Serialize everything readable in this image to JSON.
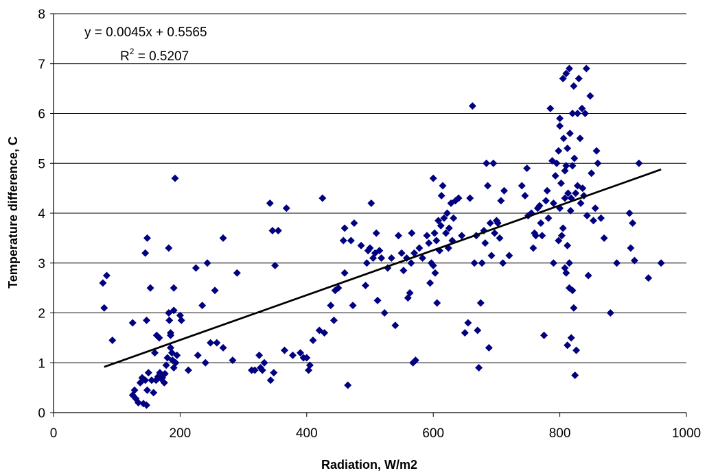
{
  "chart_data": {
    "type": "scatter",
    "xlabel": "Radiation, W/m2",
    "ylabel": "Temperature difference, C",
    "xlim": [
      0,
      1000
    ],
    "ylim": [
      0,
      8
    ],
    "xticks": [
      "0",
      "200",
      "400",
      "600",
      "800",
      "1000"
    ],
    "yticks": [
      "0",
      "1",
      "2",
      "3",
      "4",
      "5",
      "6",
      "7",
      "8"
    ],
    "grid": "horizontal",
    "legend": "none",
    "marker": "diamond",
    "marker_color": "#000080",
    "trendline": {
      "slope": 0.0045,
      "intercept": 0.5565,
      "x_range": [
        80,
        960
      ],
      "color": "#000000",
      "equation": "y = 0.0045x + 0.5565",
      "r2_prefix": "R",
      "r2_sup": "2",
      "r2_value": " = 0.5207"
    },
    "points": [
      [
        78,
        2.6
      ],
      [
        80,
        2.1
      ],
      [
        84,
        2.75
      ],
      [
        93,
        1.45
      ],
      [
        125,
        1.8
      ],
      [
        125,
        0.35
      ],
      [
        128,
        0.45
      ],
      [
        130,
        0.28
      ],
      [
        134,
        0.2
      ],
      [
        137,
        0.6
      ],
      [
        140,
        0.7
      ],
      [
        142,
        0.18
      ],
      [
        145,
        0.65
      ],
      [
        147,
        0.15
      ],
      [
        145,
        3.2
      ],
      [
        148,
        3.5
      ],
      [
        147,
        1.85
      ],
      [
        148,
        0.45
      ],
      [
        150,
        0.8
      ],
      [
        153,
        2.5
      ],
      [
        155,
        0.65
      ],
      [
        158,
        0.4
      ],
      [
        160,
        1.2
      ],
      [
        162,
        0.65
      ],
      [
        163,
        1.55
      ],
      [
        165,
        0.72
      ],
      [
        167,
        1.5
      ],
      [
        168,
        0.8
      ],
      [
        170,
        0.68
      ],
      [
        172,
        0.7
      ],
      [
        175,
        0.6
      ],
      [
        176,
        0.78
      ],
      [
        178,
        0.95
      ],
      [
        180,
        1.1
      ],
      [
        182,
        3.3
      ],
      [
        182,
        2.0
      ],
      [
        183,
        1.85
      ],
      [
        185,
        1.6
      ],
      [
        185,
        1.3
      ],
      [
        185,
        1.55
      ],
      [
        187,
        1.2
      ],
      [
        188,
        1.05
      ],
      [
        190,
        0.9
      ],
      [
        190,
        2.05
      ],
      [
        190,
        2.5
      ],
      [
        192,
        4.7
      ],
      [
        193,
        1.0
      ],
      [
        195,
        1.15
      ],
      [
        200,
        1.95
      ],
      [
        202,
        1.85
      ],
      [
        213,
        0.85
      ],
      [
        225,
        2.9
      ],
      [
        228,
        1.15
      ],
      [
        235,
        2.15
      ],
      [
        240,
        1.0
      ],
      [
        243,
        3.0
      ],
      [
        248,
        1.4
      ],
      [
        255,
        2.45
      ],
      [
        258,
        1.4
      ],
      [
        268,
        3.5
      ],
      [
        268,
        1.3
      ],
      [
        283,
        1.05
      ],
      [
        290,
        2.8
      ],
      [
        313,
        0.85
      ],
      [
        318,
        0.85
      ],
      [
        325,
        1.15
      ],
      [
        327,
        0.9
      ],
      [
        330,
        0.85
      ],
      [
        333,
        1.0
      ],
      [
        342,
        4.2
      ],
      [
        343,
        0.65
      ],
      [
        346,
        3.65
      ],
      [
        348,
        0.8
      ],
      [
        350,
        2.95
      ],
      [
        355,
        3.65
      ],
      [
        365,
        1.25
      ],
      [
        368,
        4.1
      ],
      [
        378,
        1.15
      ],
      [
        390,
        1.2
      ],
      [
        395,
        1.1
      ],
      [
        400,
        1.1
      ],
      [
        403,
        0.85
      ],
      [
        405,
        0.95
      ],
      [
        410,
        1.45
      ],
      [
        420,
        1.65
      ],
      [
        425,
        4.3
      ],
      [
        428,
        1.6
      ],
      [
        438,
        2.15
      ],
      [
        443,
        1.85
      ],
      [
        445,
        2.45
      ],
      [
        450,
        2.5
      ],
      [
        458,
        3.45
      ],
      [
        460,
        2.8
      ],
      [
        460,
        3.7
      ],
      [
        465,
        0.55
      ],
      [
        470,
        3.45
      ],
      [
        473,
        2.15
      ],
      [
        475,
        3.8
      ],
      [
        486,
        3.35
      ],
      [
        493,
        2.55
      ],
      [
        495,
        3.0
      ],
      [
        497,
        3.25
      ],
      [
        500,
        3.3
      ],
      [
        502,
        4.2
      ],
      [
        505,
        3.1
      ],
      [
        508,
        3.2
      ],
      [
        510,
        3.6
      ],
      [
        512,
        2.25
      ],
      [
        515,
        3.25
      ],
      [
        518,
        3.1
      ],
      [
        523,
        2.0
      ],
      [
        528,
        2.9
      ],
      [
        534,
        3.1
      ],
      [
        540,
        1.75
      ],
      [
        545,
        3.55
      ],
      [
        550,
        3.2
      ],
      [
        553,
        2.85
      ],
      [
        558,
        3.1
      ],
      [
        560,
        2.3
      ],
      [
        563,
        2.4
      ],
      [
        565,
        3.0
      ],
      [
        566,
        3.6
      ],
      [
        568,
        1.0
      ],
      [
        570,
        3.2
      ],
      [
        572,
        1.05
      ],
      [
        578,
        3.3
      ],
      [
        583,
        3.1
      ],
      [
        590,
        3.55
      ],
      [
        593,
        3.4
      ],
      [
        595,
        2.6
      ],
      [
        597,
        3.0
      ],
      [
        600,
        4.7
      ],
      [
        600,
        2.95
      ],
      [
        602,
        3.6
      ],
      [
        603,
        2.8
      ],
      [
        605,
        3.45
      ],
      [
        606,
        2.2
      ],
      [
        608,
        3.85
      ],
      [
        610,
        3.25
      ],
      [
        612,
        3.75
      ],
      [
        613,
        4.35
      ],
      [
        615,
        4.55
      ],
      [
        617,
        3.9
      ],
      [
        620,
        3.6
      ],
      [
        622,
        4.0
      ],
      [
        624,
        3.3
      ],
      [
        625,
        3.7
      ],
      [
        628,
        4.2
      ],
      [
        630,
        3.45
      ],
      [
        632,
        3.9
      ],
      [
        635,
        4.25
      ],
      [
        640,
        4.3
      ],
      [
        645,
        3.55
      ],
      [
        650,
        1.6
      ],
      [
        655,
        1.8
      ],
      [
        658,
        4.3
      ],
      [
        662,
        6.15
      ],
      [
        665,
        3.0
      ],
      [
        668,
        3.55
      ],
      [
        670,
        1.65
      ],
      [
        672,
        0.9
      ],
      [
        675,
        2.2
      ],
      [
        677,
        3.0
      ],
      [
        680,
        3.65
      ],
      [
        682,
        3.4
      ],
      [
        684,
        5.0
      ],
      [
        686,
        4.55
      ],
      [
        688,
        1.3
      ],
      [
        690,
        3.8
      ],
      [
        692,
        3.15
      ],
      [
        695,
        5.0
      ],
      [
        697,
        3.6
      ],
      [
        700,
        3.85
      ],
      [
        702,
        3.8
      ],
      [
        705,
        3.5
      ],
      [
        707,
        4.25
      ],
      [
        710,
        3.0
      ],
      [
        712,
        4.45
      ],
      [
        720,
        3.15
      ],
      [
        740,
        4.55
      ],
      [
        745,
        4.35
      ],
      [
        748,
        4.9
      ],
      [
        750,
        3.95
      ],
      [
        755,
        4.0
      ],
      [
        758,
        3.3
      ],
      [
        760,
        3.6
      ],
      [
        762,
        3.55
      ],
      [
        765,
        4.1
      ],
      [
        768,
        4.15
      ],
      [
        770,
        3.8
      ],
      [
        772,
        3.55
      ],
      [
        775,
        1.55
      ],
      [
        778,
        4.25
      ],
      [
        780,
        4.45
      ],
      [
        782,
        3.9
      ],
      [
        785,
        6.1
      ],
      [
        788,
        5.05
      ],
      [
        790,
        4.2
      ],
      [
        793,
        4.75
      ],
      [
        795,
        5.0
      ],
      [
        798,
        5.25
      ],
      [
        800,
        5.9
      ],
      [
        800,
        5.75
      ],
      [
        802,
        4.6
      ],
      [
        803,
        3.55
      ],
      [
        805,
        6.7
      ],
      [
        806,
        5.5
      ],
      [
        808,
        4.85
      ],
      [
        810,
        6.8
      ],
      [
        812,
        5.3
      ],
      [
        813,
        4.4
      ],
      [
        815,
        6.9
      ],
      [
        816,
        5.6
      ],
      [
        818,
        4.3
      ],
      [
        820,
        6.0
      ],
      [
        820,
        4.95
      ],
      [
        822,
        6.55
      ],
      [
        823,
        5.1
      ],
      [
        824,
        0.75
      ],
      [
        825,
        4.4
      ],
      [
        826,
        1.25
      ],
      [
        828,
        6.0
      ],
      [
        828,
        4.55
      ],
      [
        830,
        6.7
      ],
      [
        832,
        5.5
      ],
      [
        833,
        4.2
      ],
      [
        835,
        6.1
      ],
      [
        836,
        4.5
      ],
      [
        838,
        4.35
      ],
      [
        840,
        6.0
      ],
      [
        842,
        6.9
      ],
      [
        843,
        3.95
      ],
      [
        845,
        2.75
      ],
      [
        848,
        6.35
      ],
      [
        850,
        4.8
      ],
      [
        853,
        3.85
      ],
      [
        856,
        4.1
      ],
      [
        858,
        5.25
      ],
      [
        860,
        5.0
      ],
      [
        865,
        3.9
      ],
      [
        870,
        3.5
      ],
      [
        880,
        2.0
      ],
      [
        890,
        3.0
      ],
      [
        910,
        4.0
      ],
      [
        912,
        3.3
      ],
      [
        915,
        3.8
      ],
      [
        918,
        3.05
      ],
      [
        925,
        5.0
      ],
      [
        940,
        2.7
      ],
      [
        960,
        3.0
      ],
      [
        808,
        2.9
      ],
      [
        810,
        2.8
      ],
      [
        812,
        3.35
      ],
      [
        818,
        1.5
      ],
      [
        812,
        1.35
      ],
      [
        820,
        2.45
      ],
      [
        822,
        2.1
      ],
      [
        815,
        2.5
      ],
      [
        805,
        3.7
      ],
      [
        810,
        4.95
      ],
      [
        817,
        4.05
      ],
      [
        815,
        3.0
      ],
      [
        800,
        4.1
      ],
      [
        808,
        4.3
      ],
      [
        798,
        3.45
      ],
      [
        790,
        3.0
      ]
    ]
  }
}
